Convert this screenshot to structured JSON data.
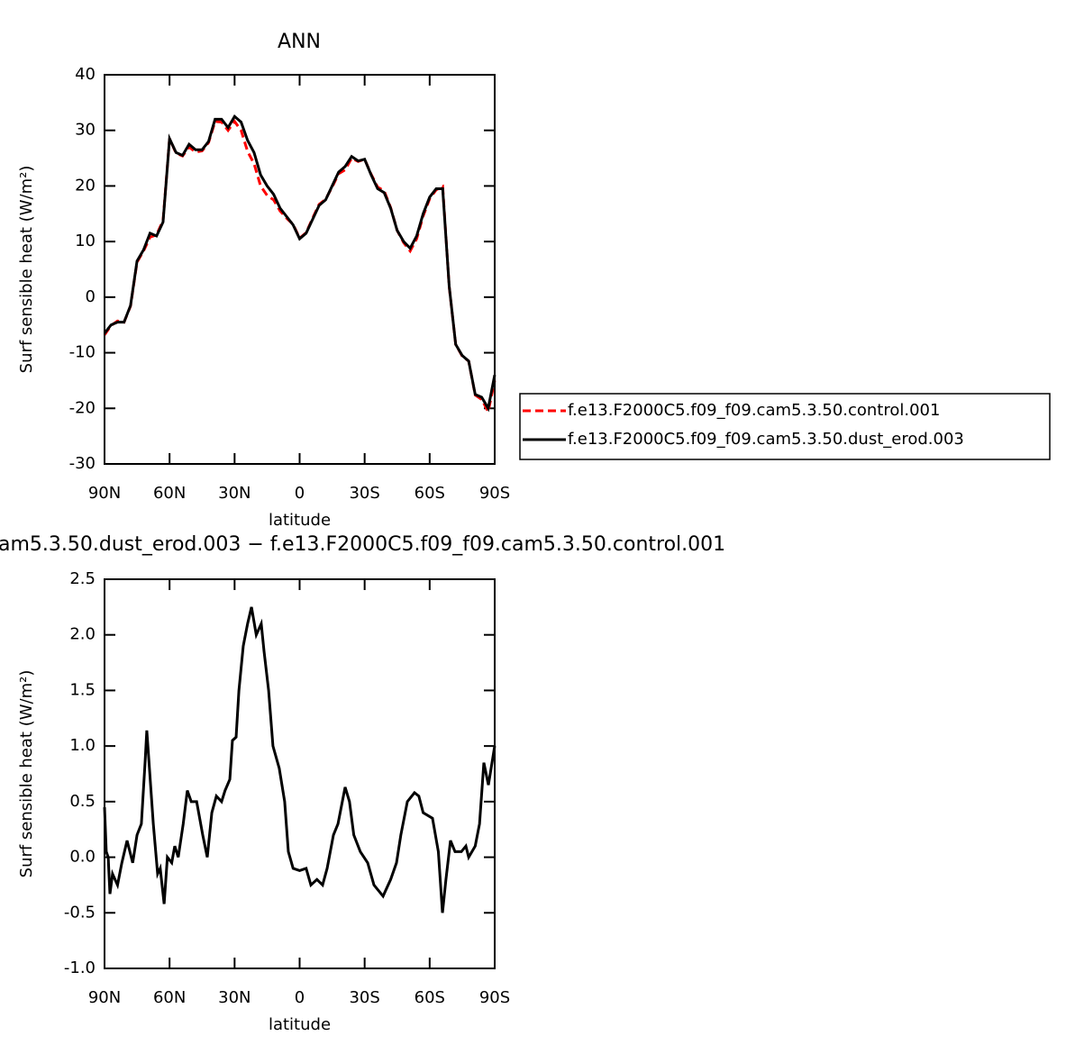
{
  "chart_data": [
    {
      "type": "line",
      "title": "ANN",
      "xlabel": "latitude",
      "ylabel": "Surf sensible heat (W/m²)",
      "x": [
        90,
        87,
        84,
        81,
        78,
        75,
        72,
        69,
        66,
        63,
        60,
        57,
        54,
        51,
        48,
        45,
        42,
        39,
        36,
        33,
        30,
        27,
        24,
        21,
        18,
        15,
        12,
        9,
        6,
        3,
        0,
        -3,
        -6,
        -9,
        -12,
        -15,
        -18,
        -21,
        -24,
        -27,
        -30,
        -33,
        -36,
        -39,
        -42,
        -45,
        -48,
        -51,
        -54,
        -57,
        -60,
        -63,
        -66,
        -69,
        -72,
        -75,
        -78,
        -81,
        -84,
        -87,
        -90
      ],
      "xlim": [
        90,
        -90
      ],
      "xticks": [
        {
          "value": 90,
          "label": "90N"
        },
        {
          "value": 60,
          "label": "60N"
        },
        {
          "value": 30,
          "label": "30N"
        },
        0,
        {
          "value": -30,
          "label": "30S"
        },
        {
          "value": -60,
          "label": "60S"
        },
        {
          "value": -90,
          "label": "90S"
        }
      ],
      "ylim": [
        -30,
        40
      ],
      "yticks": [
        -30,
        -20,
        -10,
        0,
        10,
        20,
        30,
        40
      ],
      "legend_position": "right",
      "series": [
        {
          "name": "f.e13.F2000C5.f09_f09.cam5.3.50.control.001",
          "color": "#ff0000",
          "linestyle": "dashed",
          "values": [
            -6.8,
            -5.1,
            -4.3,
            -4.5,
            -1.6,
            6.3,
            8.3,
            10.8,
            11.2,
            13.8,
            28.5,
            25.9,
            25.4,
            27,
            26.1,
            26.3,
            27.8,
            31.6,
            31.5,
            30,
            31.6,
            30,
            26.2,
            24,
            20,
            18.3,
            17.5,
            15.5,
            14.2,
            13.1,
            10.6,
            11.6,
            14.2,
            16.7,
            17.6,
            19.8,
            22.2,
            22.9,
            25,
            24.4,
            24.8,
            22.1,
            19.8,
            19.1,
            16.1,
            12,
            9.8,
            8.3,
            10.5,
            14.6,
            17.7,
            19.3,
            19.9,
            1.9,
            -8.5,
            -10.6,
            -11.5,
            -17.6,
            -18.4,
            -20.6,
            -15
          ]
        },
        {
          "name": "f.e13.F2000C5.f09_f09.cam5.3.50.dust_erod.003",
          "color": "#000000",
          "linestyle": "solid",
          "values": [
            -6.5,
            -5,
            -4.5,
            -4.5,
            -1.5,
            6.5,
            8.5,
            11.5,
            11,
            13.5,
            28.5,
            26,
            25.5,
            27.5,
            26.5,
            26.5,
            28,
            32,
            32,
            30.5,
            32.5,
            31.5,
            28.2,
            26,
            22,
            20,
            18.5,
            16,
            14.5,
            13,
            10.5,
            11.5,
            14,
            16.5,
            17.5,
            20,
            22.5,
            23.5,
            25.3,
            24.5,
            24.8,
            22,
            19.5,
            18.8,
            16,
            12,
            10,
            8.8,
            11,
            15,
            18,
            19.5,
            19.5,
            2,
            -8.5,
            -10.5,
            -11.5,
            -17.5,
            -18,
            -20,
            -14
          ]
        }
      ]
    },
    {
      "type": "line",
      "title": "am5.3.50.dust_erod.003 − f.e13.F2000C5.f09_f09.cam5.3.50.control.001",
      "xlabel": "latitude",
      "ylabel": "Surf sensible heat (W/m²)",
      "x": [
        90,
        89.2,
        88.3,
        87.5,
        86.3,
        84,
        82,
        79.6,
        77,
        75,
        73,
        71.3,
        70.5,
        67.5,
        65.5,
        64.3,
        62.5,
        61,
        59,
        57.6,
        56,
        53.7,
        51.8,
        50,
        47.5,
        44.7,
        42.6,
        40.5,
        38.4,
        36,
        34.4,
        32.2,
        31,
        29.3,
        28,
        26,
        24,
        22.2,
        20,
        17.7,
        16.4,
        14.3,
        12.3,
        9.4,
        6.9,
        5.2,
        3,
        0,
        -3,
        -5.2,
        -8,
        -10.6,
        -12.7,
        -15.6,
        -17.7,
        -21,
        -23,
        -25,
        -28,
        -31.4,
        -34.3,
        -38.5,
        -42,
        -44.7,
        -46.7,
        -49.7,
        -53,
        -55,
        -57,
        -61.3,
        -64,
        -65.9,
        -67.5,
        -69.6,
        -71.7,
        -74.6,
        -76.7,
        -78,
        -81,
        -83,
        -85,
        -87.1,
        -90
      ],
      "xlim": [
        90,
        -90
      ],
      "xticks": [
        {
          "value": 90,
          "label": "90N"
        },
        {
          "value": 60,
          "label": "60N"
        },
        {
          "value": 30,
          "label": "30N"
        },
        0,
        {
          "value": -30,
          "label": "30S"
        },
        {
          "value": -60,
          "label": "60S"
        },
        {
          "value": -90,
          "label": "90S"
        }
      ],
      "ylim": [
        -1.0,
        2.5
      ],
      "yticks": [
        {
          "value": -1.0,
          "label": "-1.0"
        },
        -0.5,
        {
          "value": 0.0,
          "label": "0.0"
        },
        0.5,
        {
          "value": 1.0,
          "label": "1.0"
        },
        1.5,
        {
          "value": 2.0,
          "label": "2.0"
        },
        2.5
      ],
      "series": [
        {
          "color": "#000000",
          "linestyle": "solid",
          "values": [
            0.45,
            0.05,
            0,
            -0.33,
            -0.15,
            -0.25,
            -0.05,
            0.15,
            -0.05,
            0.2,
            0.3,
            0.85,
            1.14,
            0.3,
            -0.15,
            -0.1,
            -0.42,
            0,
            -0.05,
            0.1,
            0,
            0.3,
            0.6,
            0.5,
            0.5,
            0.2,
            0,
            0.4,
            0.55,
            0.5,
            0.6,
            0.7,
            1.05,
            1.08,
            1.5,
            1.9,
            2.1,
            2.25,
            2.0,
            2.1,
            1.85,
            1.5,
            1.0,
            0.8,
            0.5,
            0.05,
            -0.1,
            -0.12,
            -0.1,
            -0.25,
            -0.2,
            -0.25,
            -0.1,
            0.2,
            0.3,
            0.63,
            0.5,
            0.2,
            0.05,
            -0.05,
            -0.25,
            -0.35,
            -0.2,
            -0.05,
            0.2,
            0.5,
            0.58,
            0.55,
            0.4,
            0.35,
            0.05,
            -0.5,
            -0.2,
            0.15,
            0.05,
            0.05,
            0.1,
            0,
            0.1,
            0.3,
            0.85,
            0.65,
            1.0
          ]
        }
      ]
    }
  ]
}
